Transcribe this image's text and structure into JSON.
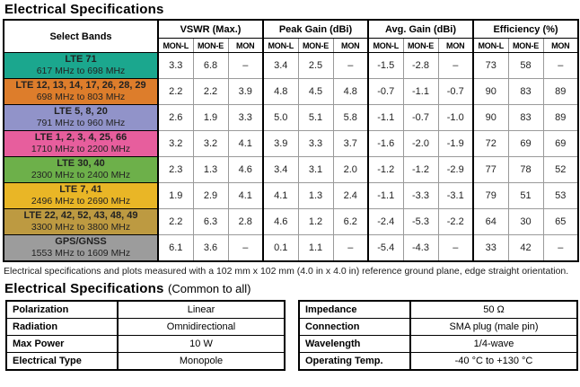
{
  "page": {
    "title": "Electrical Specifications",
    "footnote": "Electrical specifications and plots measured with a 102 mm x 102 mm (4.0 in x 4.0 in) reference ground plane, edge straight orientation.",
    "section2_title": "Electrical Specifications",
    "section2_suffix": "(Common to all)"
  },
  "spec_table": {
    "band_col_header": "Select Bands",
    "groups": [
      {
        "label": "VSWR (Max.)"
      },
      {
        "label": "Peak Gain (dBi)"
      },
      {
        "label": "Avg. Gain (dBi)"
      },
      {
        "label": "Efficiency (%)"
      }
    ],
    "subcolumns": [
      "MON-L",
      "MON-E",
      "MON"
    ],
    "rows": [
      {
        "band": "LTE 71",
        "range": "617 MHz to 698 MHz",
        "color": "#1BA78E",
        "vswr": [
          "3.3",
          "6.8",
          "–"
        ],
        "peak": [
          "3.4",
          "2.5",
          "–"
        ],
        "avg": [
          "-1.5",
          "-2.8",
          "–"
        ],
        "eff": [
          "73",
          "58",
          "–"
        ]
      },
      {
        "band": "LTE 12, 13, 14, 17, 26, 28, 29",
        "range": "698 MHz to 803 MHz",
        "color": "#DD7D2B",
        "vswr": [
          "2.2",
          "2.2",
          "3.9"
        ],
        "peak": [
          "4.8",
          "4.5",
          "4.8"
        ],
        "avg": [
          "-0.7",
          "-1.1",
          "-0.7"
        ],
        "eff": [
          "90",
          "83",
          "89"
        ]
      },
      {
        "band": "LTE 5, 8, 20",
        "range": "791 MHz to 960 MHz",
        "color": "#9193C9",
        "vswr": [
          "2.6",
          "1.9",
          "3.3"
        ],
        "peak": [
          "5.0",
          "5.1",
          "5.8"
        ],
        "avg": [
          "-1.1",
          "-0.7",
          "-1.0"
        ],
        "eff": [
          "90",
          "83",
          "89"
        ]
      },
      {
        "band": "LTE 1, 2, 3, 4, 25, 66",
        "range": "1710 MHz to 2200 MHz",
        "color": "#E75E9D",
        "vswr": [
          "3.2",
          "3.2",
          "4.1"
        ],
        "peak": [
          "3.9",
          "3.3",
          "3.7"
        ],
        "avg": [
          "-1.6",
          "-2.0",
          "-1.9"
        ],
        "eff": [
          "72",
          "69",
          "69"
        ]
      },
      {
        "band": "LTE 30, 40",
        "range": "2300 MHz to 2400 MHz",
        "color": "#6DB04A",
        "vswr": [
          "2.3",
          "1.3",
          "4.6"
        ],
        "peak": [
          "3.4",
          "3.1",
          "2.0"
        ],
        "avg": [
          "-1.2",
          "-1.2",
          "-2.9"
        ],
        "eff": [
          "77",
          "78",
          "52"
        ]
      },
      {
        "band": "LTE 7, 41",
        "range": "2496 MHz to 2690 MHz",
        "color": "#E9B626",
        "vswr": [
          "1.9",
          "2.9",
          "4.1"
        ],
        "peak": [
          "4.1",
          "1.3",
          "2.4"
        ],
        "avg": [
          "-1.1",
          "-3.3",
          "-3.1"
        ],
        "eff": [
          "79",
          "51",
          "53"
        ]
      },
      {
        "band": "LTE 22, 42, 52, 43, 48, 49",
        "range": "3300 MHz to 3800 MHz",
        "color": "#BD9A41",
        "vswr": [
          "2.2",
          "6.3",
          "2.8"
        ],
        "peak": [
          "4.6",
          "1.2",
          "6.2"
        ],
        "avg": [
          "-2.4",
          "-5.3",
          "-2.2"
        ],
        "eff": [
          "64",
          "30",
          "65"
        ]
      },
      {
        "band": "GPS/GNSS",
        "range": "1553 MHz to 1609 MHz",
        "color": "#9C9C9C",
        "vswr": [
          "6.1",
          "3.6",
          "–"
        ],
        "peak": [
          "0.1",
          "1.1",
          "–"
        ],
        "avg": [
          "-5.4",
          "-4.3",
          "–"
        ],
        "eff": [
          "33",
          "42",
          "–"
        ]
      }
    ]
  },
  "common_specs": {
    "left": [
      {
        "label": "Polarization",
        "value": "Linear"
      },
      {
        "label": "Radiation",
        "value": "Omnidirectional"
      },
      {
        "label": "Max Power",
        "value": "10 W"
      },
      {
        "label": "Electrical Type",
        "value": "Monopole"
      }
    ],
    "right": [
      {
        "label": "Impedance",
        "value": "50 Ω"
      },
      {
        "label": "Connection",
        "value": "SMA plug (male pin)"
      },
      {
        "label": "Wavelength",
        "value": "1/4-wave"
      },
      {
        "label": "Operating Temp.",
        "value": "-40 °C to +130 °C"
      }
    ]
  }
}
